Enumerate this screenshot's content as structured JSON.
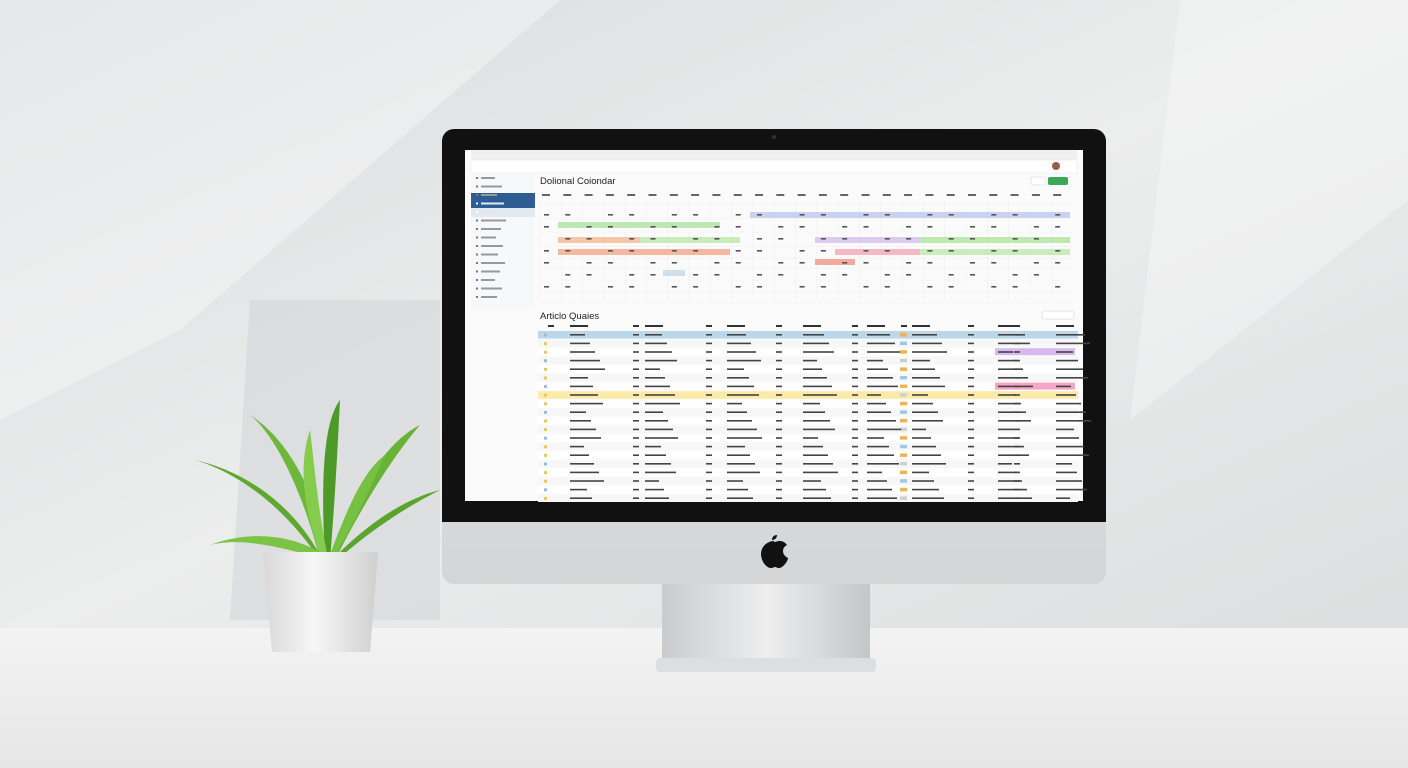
{
  "screen": {
    "calendar_title": "Dolional Coiondar",
    "table_title": "Articlo Quaies"
  }
}
